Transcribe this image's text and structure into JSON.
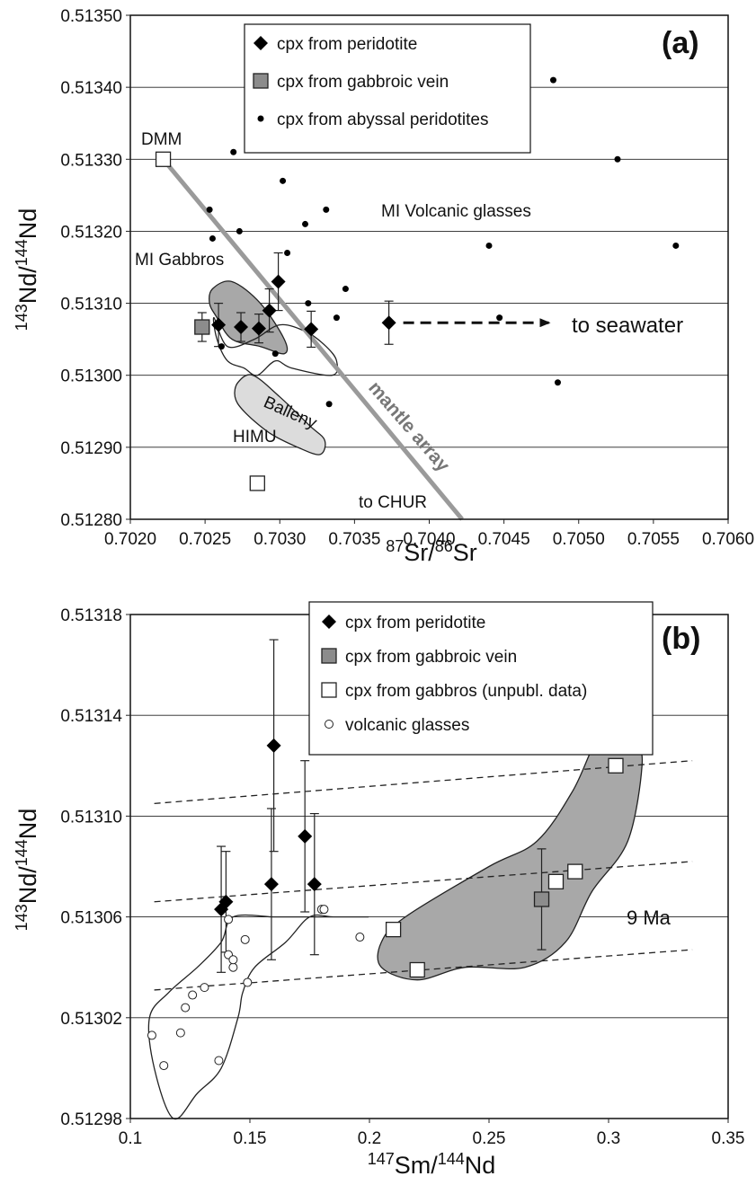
{
  "chart_data": [
    {
      "type": "scatter",
      "panel_label": "(a)",
      "xlabel": {
        "iso1": "87",
        "el1": "Sr",
        "iso2": "86",
        "el2": "Sr"
      },
      "ylabel": {
        "iso1": "143",
        "el1": "Nd",
        "iso2": "144",
        "el2": "Nd"
      },
      "xlim": [
        0.702,
        0.706
      ],
      "ylim": [
        0.5128,
        0.5135
      ],
      "x_ticks": [
        "0.7020",
        "0.7025",
        "0.7030",
        "0.7035",
        "0.7040",
        "0.7045",
        "0.7050",
        "0.7055",
        "0.7060"
      ],
      "y_ticks": [
        "0.51280",
        "0.51290",
        "0.51300",
        "0.51310",
        "0.51320",
        "0.51330",
        "0.51340",
        "0.51350"
      ],
      "grid": "horizontal",
      "legend": [
        {
          "marker": "diamond",
          "label": "cpx from peridotite"
        },
        {
          "marker": "gray-square",
          "label": "cpx from gabbroic vein"
        },
        {
          "marker": "dot",
          "label": "cpx from abyssal peridotites"
        }
      ],
      "series": [
        {
          "name": "cpx from peridotite",
          "points": [
            {
              "x": 0.70259,
              "y": 0.51307,
              "err": 3e-05
            },
            {
              "x": 0.70274,
              "y": 0.513067,
              "err": 2e-05
            },
            {
              "x": 0.70286,
              "y": 0.513065,
              "err": 2e-05
            },
            {
              "x": 0.70293,
              "y": 0.51309,
              "err": 3e-05
            },
            {
              "x": 0.70299,
              "y": 0.51313,
              "err": 4e-05
            },
            {
              "x": 0.70321,
              "y": 0.513064,
              "err": 2.5e-05
            },
            {
              "x": 0.70373,
              "y": 0.513073,
              "err": 3e-05
            }
          ]
        },
        {
          "name": "cpx from gabbroic vein",
          "points": [
            {
              "x": 0.70248,
              "y": 0.513067,
              "err": 2e-05
            }
          ]
        },
        {
          "name": "cpx from abyssal peridotites",
          "points": [
            {
              "x": 0.70253,
              "y": 0.51323
            },
            {
              "x": 0.70255,
              "y": 0.51319
            },
            {
              "x": 0.70269,
              "y": 0.51331
            },
            {
              "x": 0.70273,
              "y": 0.5132
            },
            {
              "x": 0.70302,
              "y": 0.51327
            },
            {
              "x": 0.70305,
              "y": 0.51317
            },
            {
              "x": 0.70317,
              "y": 0.51321
            },
            {
              "x": 0.70331,
              "y": 0.51323
            },
            {
              "x": 0.70344,
              "y": 0.51312
            },
            {
              "x": 0.70338,
              "y": 0.51308
            },
            {
              "x": 0.70319,
              "y": 0.5131
            },
            {
              "x": 0.70261,
              "y": 0.51304
            },
            {
              "x": 0.70297,
              "y": 0.51303
            },
            {
              "x": 0.70333,
              "y": 0.51296
            },
            {
              "x": 0.7044,
              "y": 0.51318
            },
            {
              "x": 0.70447,
              "y": 0.51308
            },
            {
              "x": 0.70483,
              "y": 0.51341
            },
            {
              "x": 0.70486,
              "y": 0.51299
            },
            {
              "x": 0.70526,
              "y": 0.5133
            },
            {
              "x": 0.70565,
              "y": 0.51318
            }
          ]
        }
      ],
      "reference_points": [
        {
          "label": "DMM",
          "x": 0.70222,
          "y": 0.5133
        },
        {
          "label": "HIMU",
          "x": 0.70285,
          "y": 0.51285
        }
      ],
      "mantle_array": {
        "label": "mantle array",
        "x1": 0.70222,
        "y1": 0.5133,
        "x2": 0.70422,
        "y2": 0.5128
      },
      "regions": [
        {
          "label": "MI Gabbros",
          "fill": "#a8a8a8",
          "points": [
            [
              0.70255,
              0.51312
            ],
            [
              0.70268,
              0.51313
            ],
            [
              0.70287,
              0.5131
            ],
            [
              0.70303,
              0.51305
            ],
            [
              0.70303,
              0.51303
            ],
            [
              0.70287,
              0.51304
            ],
            [
              0.70268,
              0.51305
            ],
            [
              0.70258,
              0.51308
            ],
            [
              0.70253,
              0.5131
            ]
          ]
        },
        {
          "label": "MI Volcanic glasses",
          "fill": "none",
          "points": [
            [
              0.70256,
              0.51308
            ],
            [
              0.70265,
              0.51304
            ],
            [
              0.70283,
              0.51305
            ],
            [
              0.703,
              0.51307
            ],
            [
              0.70318,
              0.51306
            ],
            [
              0.70331,
              0.51304
            ],
            [
              0.70338,
              0.51302
            ],
            [
              0.70335,
              0.513
            ],
            [
              0.70308,
              0.51301
            ],
            [
              0.70297,
              0.51302
            ],
            [
              0.70285,
              0.513
            ],
            [
              0.70276,
              0.51301
            ],
            [
              0.70265,
              0.51302
            ],
            [
              0.70258,
              0.51305
            ]
          ]
        },
        {
          "label": "Balleny",
          "fill": "#dcdcdc",
          "points": [
            [
              0.70272,
              0.51299
            ],
            [
              0.70282,
              0.513
            ],
            [
              0.703,
              0.51297
            ],
            [
              0.7032,
              0.51293
            ],
            [
              0.7033,
              0.51291
            ],
            [
              0.70327,
              0.51289
            ],
            [
              0.70312,
              0.5129
            ],
            [
              0.70293,
              0.51292
            ],
            [
              0.70276,
              0.51295
            ],
            [
              0.7027,
              0.51297
            ]
          ]
        }
      ],
      "annotations": {
        "seawater": "to seawater",
        "chur": "to CHUR"
      }
    },
    {
      "type": "scatter",
      "panel_label": "(b)",
      "xlabel": {
        "iso1": "147",
        "el1": "Sm",
        "iso2": "144",
        "el2": "Nd"
      },
      "ylabel": {
        "iso1": "143",
        "el1": "Nd",
        "iso2": "144",
        "el2": "Nd"
      },
      "xlim": [
        0.1,
        0.35
      ],
      "ylim": [
        0.51298,
        0.51318
      ],
      "x_ticks": [
        "0.1",
        "0.15",
        "0.2",
        "0.25",
        "0.3",
        "0.35"
      ],
      "y_ticks": [
        "0.51298",
        "0.51302",
        "0.51306",
        "0.51310",
        "0.51314",
        "0.51318"
      ],
      "grid": "horizontal",
      "legend": [
        {
          "marker": "diamond",
          "label": "cpx from peridotite"
        },
        {
          "marker": "gray-square",
          "label": "cpx from gabbroic vein"
        },
        {
          "marker": "white-square",
          "label": "cpx from gabbros (unpubl. data)"
        },
        {
          "marker": "circle",
          "label": "volcanic glasses"
        }
      ],
      "series": [
        {
          "name": "cpx from peridotite",
          "points": [
            {
              "x": 0.138,
              "y": 0.513063,
              "err": 2.5e-05
            },
            {
              "x": 0.14,
              "y": 0.513066,
              "err": 2e-05
            },
            {
              "x": 0.159,
              "y": 0.513073,
              "err": 3e-05
            },
            {
              "x": 0.16,
              "y": 0.513128,
              "err": 4.2e-05
            },
            {
              "x": 0.173,
              "y": 0.513092,
              "err": 3e-05
            },
            {
              "x": 0.177,
              "y": 0.513073,
              "err": 2.8e-05
            }
          ]
        },
        {
          "name": "cpx from gabbroic vein",
          "points": [
            {
              "x": 0.272,
              "y": 0.513067,
              "err": 2e-05
            }
          ]
        },
        {
          "name": "cpx from gabbros (unpubl. data)",
          "points": [
            {
              "x": 0.21,
              "y": 0.513055
            },
            {
              "x": 0.22,
              "y": 0.513039
            },
            {
              "x": 0.278,
              "y": 0.513074
            },
            {
              "x": 0.286,
              "y": 0.513078
            },
            {
              "x": 0.303,
              "y": 0.51312
            }
          ]
        },
        {
          "name": "volcanic glasses",
          "points": [
            {
              "x": 0.109,
              "y": 0.513013
            },
            {
              "x": 0.114,
              "y": 0.513001
            },
            {
              "x": 0.121,
              "y": 0.513014
            },
            {
              "x": 0.123,
              "y": 0.513024
            },
            {
              "x": 0.126,
              "y": 0.513029
            },
            {
              "x": 0.131,
              "y": 0.513032
            },
            {
              "x": 0.137,
              "y": 0.513003
            },
            {
              "x": 0.141,
              "y": 0.513059
            },
            {
              "x": 0.141,
              "y": 0.513045
            },
            {
              "x": 0.143,
              "y": 0.51304
            },
            {
              "x": 0.143,
              "y": 0.513043
            },
            {
              "x": 0.148,
              "y": 0.513051
            },
            {
              "x": 0.149,
              "y": 0.513034
            },
            {
              "x": 0.18,
              "y": 0.513063
            },
            {
              "x": 0.181,
              "y": 0.513063
            },
            {
              "x": 0.196,
              "y": 0.513052
            }
          ]
        }
      ],
      "isochrons": [
        {
          "x1": 0.11,
          "y1": 0.513105,
          "x2": 0.335,
          "y2": 0.513122
        },
        {
          "x1": 0.11,
          "y1": 0.513066,
          "x2": 0.335,
          "y2": 0.513082
        },
        {
          "x1": 0.11,
          "y1": 0.513031,
          "x2": 0.335,
          "y2": 0.513047
        }
      ],
      "regions": [
        {
          "fill": "#a8a8a8",
          "points": [
            [
              0.205,
              0.51305
            ],
            [
              0.215,
              0.51306
            ],
            [
              0.25,
              0.51308
            ],
            [
              0.27,
              0.51309
            ],
            [
              0.285,
              0.51311
            ],
            [
              0.295,
              0.51313
            ],
            [
              0.302,
              0.513131
            ],
            [
              0.311,
              0.513128
            ],
            [
              0.314,
              0.51312
            ],
            [
              0.308,
              0.51309
            ],
            [
              0.293,
              0.51307
            ],
            [
              0.282,
              0.51305
            ],
            [
              0.265,
              0.51304
            ],
            [
              0.24,
              0.51304
            ],
            [
              0.22,
              0.513035
            ],
            [
              0.205,
              0.51304
            ]
          ]
        },
        {
          "fill": "none",
          "points": [
            [
              0.11,
              0.513
            ],
            [
              0.118,
              0.51298
            ],
            [
              0.128,
              0.51299
            ],
            [
              0.138,
              0.513
            ],
            [
              0.145,
              0.51302
            ],
            [
              0.147,
              0.51303
            ],
            [
              0.152,
              0.51304
            ],
            [
              0.165,
              0.51305
            ],
            [
              0.175,
              0.51306
            ],
            [
              0.185,
              0.51306
            ],
            [
              0.197,
              0.51306
            ],
            [
              0.199,
              0.51306
            ],
            [
              0.19,
              0.51306
            ],
            [
              0.17,
              0.51306
            ],
            [
              0.16,
              0.51306
            ],
            [
              0.143,
              0.51306
            ],
            [
              0.138,
              0.51305
            ],
            [
              0.128,
              0.51304
            ],
            [
              0.116,
              0.51303
            ],
            [
              0.108,
              0.51302
            ]
          ]
        }
      ],
      "annotations": {
        "age": "9 Ma"
      }
    }
  ]
}
